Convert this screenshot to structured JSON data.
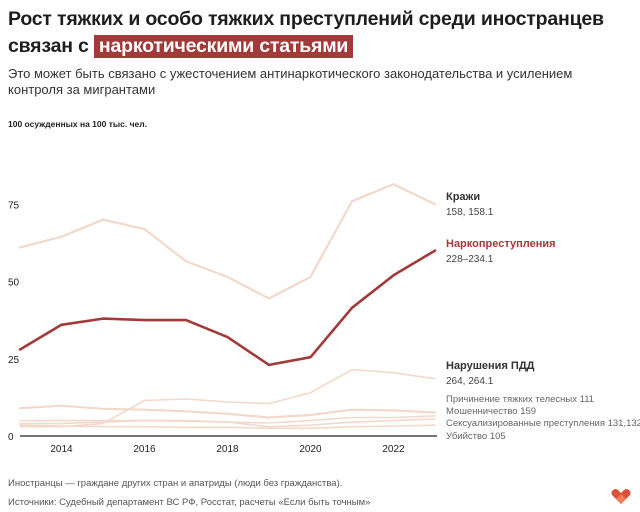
{
  "title_part1": "Рост тяжких и особо тяжких преступлений среди иностранцев связан с ",
  "title_highlight": "наркотическими статьями",
  "subtitle": "Это может быть связано с ужесточением антинаркотического законодательства и усилением контроля за мигрантами",
  "footnote": "Иностранцы — граждане других стран и апатриды (люди без гражданства).",
  "source": "Источники: Судебный департамент ВС РФ, Росстат, расчеты «Если быть точным»",
  "colors": {
    "accent": "#a23a3a",
    "light": "#f2d9cc",
    "grid": "#222222"
  },
  "chart_data": {
    "type": "line",
    "ylabel": "100 осужденных на 100 тыс. чел.",
    "ylim": [
      0,
      100
    ],
    "yticks": [
      0,
      25,
      50,
      75
    ],
    "xticks": [
      2014,
      2016,
      2018,
      2020,
      2022
    ],
    "x": [
      2013,
      2014,
      2015,
      2016,
      2017,
      2018,
      2019,
      2020,
      2021,
      2022,
      2023
    ],
    "series": [
      {
        "name": "Кражи",
        "note": "158, 158.1",
        "color": "#f2d9cc",
        "width": 2.2,
        "label": true,
        "values": [
          61,
          64.5,
          70,
          67,
          56.5,
          51.5,
          44.5,
          51.5,
          76,
          81.5,
          75
        ]
      },
      {
        "name": "Наркопреступления",
        "note": "228–234.1",
        "color": "#a23a3a",
        "width": 2.6,
        "label": true,
        "values": [
          28,
          36,
          38,
          37.5,
          37.5,
          32,
          23,
          25.5,
          41.5,
          52,
          60
        ]
      },
      {
        "name": "Нарушения ПДД",
        "note": "264, 264.1",
        "color": "#f2d9cc",
        "width": 2.2,
        "label": true,
        "values": [
          9,
          9.8,
          8.8,
          8.5,
          8,
          7.2,
          6,
          6.8,
          8.5,
          8.3,
          7.6
        ]
      },
      {
        "name": "Причинение тяжких телесных 111",
        "color": "#f2d9cc",
        "width": 1.6,
        "label": false,
        "values": [
          3,
          3,
          4,
          11.5,
          12,
          11,
          10.5,
          14,
          21.5,
          20.5,
          18.5
        ]
      },
      {
        "name": "Мошенничество 159",
        "color": "#f2d9cc",
        "width": 1.6,
        "label": false,
        "values": [
          4,
          4,
          4.5,
          5,
          5,
          4.5,
          4.2,
          5,
          6,
          6,
          6.5
        ]
      },
      {
        "name": "Сексуализированные преступления 131,132",
        "color": "#f2d9cc",
        "width": 1.6,
        "label": false,
        "values": [
          5,
          5,
          5,
          5,
          4.8,
          4.5,
          3,
          3.5,
          4.5,
          5,
          5.5
        ]
      },
      {
        "name": "Убийство 105",
        "color": "#f2d9cc",
        "width": 1.6,
        "label": false,
        "values": [
          3.5,
          3.2,
          3,
          3,
          2.8,
          2.8,
          2.5,
          2.5,
          3,
          3.2,
          3.5
        ]
      }
    ],
    "small_labels": [
      "Причинение тяжких телесных 111",
      "Мошенничество 159",
      "Сексуализированные преступления 131,132",
      "Убийство 105"
    ]
  }
}
